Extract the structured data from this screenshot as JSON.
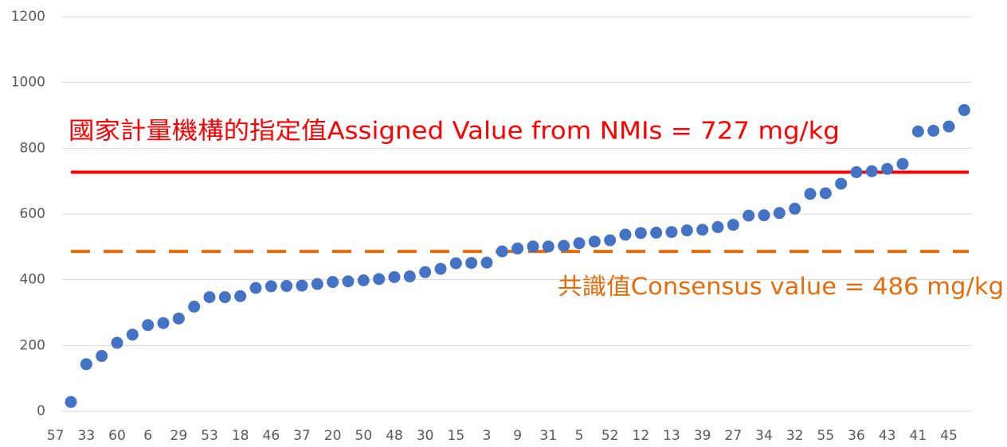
{
  "chart_data": {
    "type": "scatter",
    "categories": [
      "57",
      null,
      "33",
      null,
      "60",
      null,
      "6",
      null,
      "29",
      null,
      "53",
      null,
      "18",
      null,
      "46",
      null,
      "37",
      null,
      "20",
      null,
      "50",
      null,
      "48",
      null,
      "30",
      null,
      "15",
      null,
      "3",
      null,
      "9",
      null,
      "31",
      null,
      "5",
      null,
      "52",
      null,
      "12",
      null,
      "13",
      null,
      "39",
      null,
      "27",
      null,
      "34",
      null,
      "32",
      null,
      "55",
      null,
      "36",
      null,
      "43",
      null,
      "41",
      null,
      "45",
      null
    ],
    "values": [
      null,
      28,
      143,
      168,
      208,
      233,
      262,
      268,
      282,
      318,
      347,
      347,
      350,
      375,
      380,
      381,
      382,
      387,
      393,
      395,
      398,
      402,
      408,
      410,
      423,
      433,
      450,
      451,
      452,
      486,
      495,
      501,
      501,
      503,
      511,
      516,
      520,
      537,
      542,
      543,
      545,
      550,
      552,
      560,
      567,
      595,
      596,
      603,
      616,
      661,
      663,
      692,
      727,
      730,
      737,
      752,
      851,
      853,
      866,
      916
    ],
    "color": "#4472c4",
    "ylim": [
      0,
      1200
    ],
    "yticks": [
      0,
      200,
      400,
      600,
      800,
      1000,
      1200
    ],
    "grid": true,
    "reference_lines": [
      {
        "value": 727,
        "label": "國家計量機構的指定值Assigned Value from NMIs = 727 mg/kg",
        "color": "#ff0000",
        "style": "solid"
      },
      {
        "value": 486,
        "label": "共識值Consensus value = 486 mg/kg",
        "color": "#e46c0a",
        "style": "dashed"
      }
    ]
  }
}
